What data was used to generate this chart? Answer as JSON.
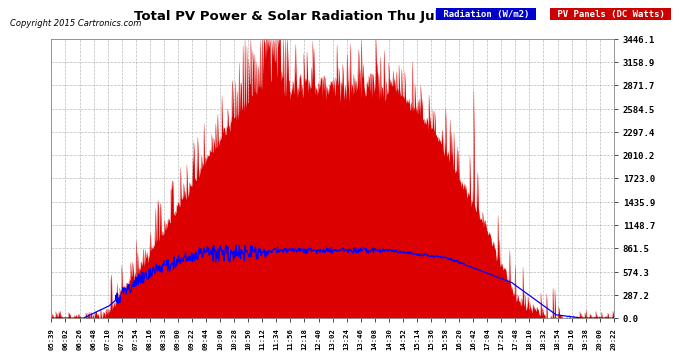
{
  "title": "Total PV Power & Solar Radiation Thu Jul 9 20:30",
  "copyright": "Copyright 2015 Cartronics.com",
  "background_color": "#ffffff",
  "plot_bg_color": "#ffffff",
  "grid_color": "#aaaaaa",
  "yticks": [
    0.0,
    287.2,
    574.3,
    861.5,
    1148.7,
    1435.9,
    1723.0,
    2010.2,
    2297.4,
    2584.5,
    2871.7,
    3158.9,
    3446.1
  ],
  "ymax": 3446.1,
  "legend_radiation_label": "Radiation (W/m2)",
  "legend_pv_label": "PV Panels (DC Watts)",
  "legend_radiation_color": "#0000ff",
  "legend_radiation_bg": "#0000ff",
  "legend_pv_bg": "#cc0000",
  "x_tick_labels": [
    "05:39",
    "06:02",
    "06:26",
    "06:48",
    "07:10",
    "07:32",
    "07:54",
    "08:16",
    "08:38",
    "09:00",
    "09:22",
    "09:44",
    "10:06",
    "10:28",
    "10:50",
    "11:12",
    "11:34",
    "11:56",
    "12:18",
    "12:40",
    "13:02",
    "13:24",
    "13:46",
    "14:08",
    "14:30",
    "14:52",
    "15:14",
    "15:36",
    "15:58",
    "16:20",
    "16:42",
    "17:04",
    "17:26",
    "17:48",
    "18:10",
    "18:32",
    "18:54",
    "19:16",
    "19:38",
    "20:00",
    "20:22"
  ]
}
